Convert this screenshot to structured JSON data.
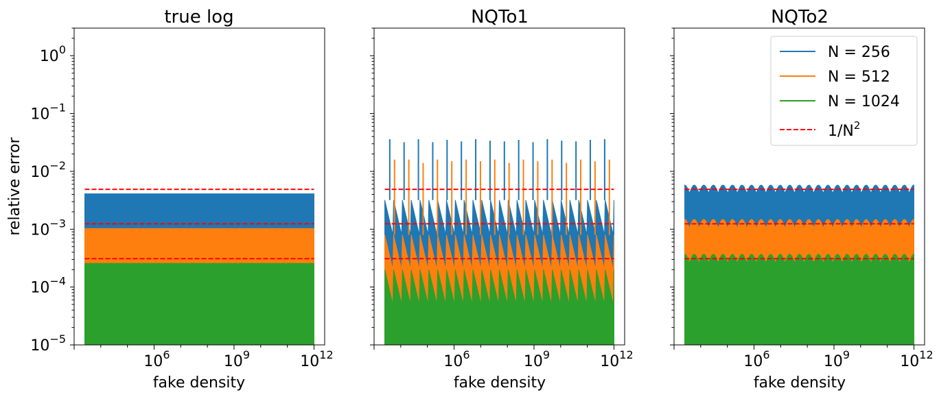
{
  "figure": {
    "shared_ylabel": "relative error",
    "legend_panel": 2
  },
  "colors": {
    "N256": "#1f77b4",
    "N512": "#ff7f0e",
    "N1024": "#2ca02c",
    "ref": "#ff0000"
  },
  "chart_data": [
    {
      "type": "area",
      "title": "true log",
      "xlabel": "fake density",
      "ylabel": "relative error",
      "xscale": "log",
      "yscale": "log",
      "xlim_exp": [
        3.0,
        12.4
      ],
      "ylim": [
        1e-05,
        3.0
      ],
      "x_ticks": [
        {
          "exp": 6,
          "label": "6"
        },
        {
          "exp": 9,
          "label": "9"
        },
        {
          "exp": 12,
          "label": "12"
        }
      ],
      "y_ticks": [
        {
          "exp": 0,
          "label": "0"
        },
        {
          "exp": -1,
          "label": "−1"
        },
        {
          "exp": -2,
          "label": "−2"
        },
        {
          "exp": -3,
          "label": "−3"
        },
        {
          "exp": -4,
          "label": "−4"
        },
        {
          "exp": -5,
          "label": "−5"
        }
      ],
      "x_range_exp": [
        3.4,
        12.0
      ],
      "series": [
        {
          "name": "N = 256",
          "color_key": "N256",
          "pattern": "flat",
          "min": 1e-05,
          "max": 0.0041
        },
        {
          "name": "N = 512",
          "color_key": "N512",
          "pattern": "flat",
          "min": 1e-05,
          "max": 0.00103
        },
        {
          "name": "N = 1024",
          "color_key": "N1024",
          "pattern": "flat",
          "min": 1e-05,
          "max": 0.000257
        }
      ],
      "reference_lines": {
        "name": "1/N²",
        "values": [
          0.0049,
          0.00124,
          0.00031
        ]
      }
    },
    {
      "type": "area",
      "title": "NQTo1",
      "xlabel": "fake density",
      "ylabel": "",
      "xscale": "log",
      "yscale": "log",
      "xlim_exp": [
        3.0,
        12.4
      ],
      "ylim": [
        1e-05,
        3.0
      ],
      "x_ticks": [
        {
          "exp": 6,
          "label": "6"
        },
        {
          "exp": 9,
          "label": "9"
        },
        {
          "exp": 12,
          "label": "12"
        }
      ],
      "y_ticks": [],
      "x_range_exp": [
        3.4,
        12.0
      ],
      "series": [
        {
          "name": "N = 256",
          "color_key": "N256",
          "pattern": "sawtooth",
          "min": 1e-05,
          "max": 0.0032,
          "low": 0.0008,
          "periods": 26,
          "spikes": [
            0.036,
            0.032,
            0.036,
            0.032,
            0.035,
            0.033,
            0.036,
            0.034,
            0.033,
            0.035,
            0.032,
            0.036,
            0.034,
            0.033,
            0.035,
            0.036
          ]
        },
        {
          "name": "N = 512",
          "color_key": "N512",
          "pattern": "sawtooth",
          "min": 1e-05,
          "max": 0.0008,
          "low": 0.0002,
          "periods": 26,
          "spikes": [
            0.016,
            0.016,
            0.014,
            0.016,
            0.015,
            0.016,
            0.015,
            0.016,
            0.014,
            0.016,
            0.015,
            0.016,
            0.014,
            0.016,
            0.015,
            0.016
          ]
        },
        {
          "name": "N = 1024",
          "color_key": "N1024",
          "pattern": "sawtooth",
          "min": 1e-05,
          "max": 0.0002,
          "low": 5e-05,
          "periods": 26,
          "spikes": []
        }
      ],
      "reference_lines": {
        "name": "1/N²",
        "values": [
          0.0049,
          0.00124,
          0.00031
        ]
      }
    },
    {
      "type": "area",
      "title": "NQTo2",
      "xlabel": "fake density",
      "ylabel": "",
      "xscale": "log",
      "yscale": "log",
      "xlim_exp": [
        3.0,
        12.4
      ],
      "ylim": [
        1e-05,
        3.0
      ],
      "x_ticks": [
        {
          "exp": 6,
          "label": "6"
        },
        {
          "exp": 9,
          "label": "9"
        },
        {
          "exp": 12,
          "label": "12"
        }
      ],
      "y_ticks": [],
      "x_range_exp": [
        3.4,
        12.0
      ],
      "series": [
        {
          "name": "N = 256",
          "color_key": "N256",
          "pattern": "ripple",
          "min": 1e-05,
          "max": 0.0058,
          "low": 0.0042,
          "periods": 24,
          "spikes": []
        },
        {
          "name": "N = 512",
          "color_key": "N512",
          "pattern": "ripple",
          "min": 1e-05,
          "max": 0.00148,
          "low": 0.00105,
          "periods": 24,
          "spikes": []
        },
        {
          "name": "N = 1024",
          "color_key": "N1024",
          "pattern": "ripple",
          "min": 1e-05,
          "max": 0.00037,
          "low": 0.00026,
          "periods": 24,
          "spikes": []
        }
      ],
      "reference_lines": {
        "name": "1/N²",
        "values": [
          0.0049,
          0.00124,
          0.00031
        ]
      }
    }
  ],
  "legend": {
    "entries": [
      {
        "label": "N = 256",
        "color_key": "N256",
        "style": "solid"
      },
      {
        "label": "N = 512",
        "color_key": "N512",
        "style": "solid"
      },
      {
        "label": "N = 1024",
        "color_key": "N1024",
        "style": "solid"
      },
      {
        "label": "1/N",
        "sup": "2",
        "color_key": "ref",
        "style": "dashed"
      }
    ]
  }
}
